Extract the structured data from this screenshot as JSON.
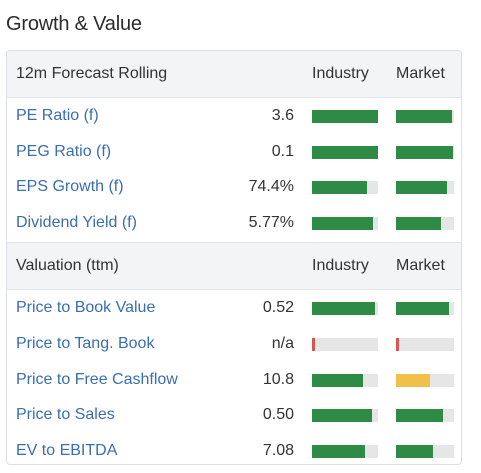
{
  "widget": {
    "title": "Growth & Value"
  },
  "colors": {
    "good": "#2e8b45",
    "neutral": "#f0c04a",
    "bad": "#d9534f",
    "track": "#e6e6e6"
  },
  "sections": [
    {
      "header": "12m Forecast Rolling",
      "industry_label": "Industry",
      "market_label": "Market",
      "rows": [
        {
          "label": "PE Ratio (f)",
          "value": "3.6",
          "industry": 1.0,
          "industry_color": "good",
          "market": 0.97,
          "market_color": "good"
        },
        {
          "label": "PEG Ratio (f)",
          "value": "0.1",
          "industry": 1.0,
          "industry_color": "good",
          "market": 0.98,
          "market_color": "good"
        },
        {
          "label": "EPS Growth (f)",
          "value": "74.4%",
          "industry": 0.84,
          "industry_color": "good",
          "market": 0.88,
          "market_color": "good"
        },
        {
          "label": "Dividend Yield (f)",
          "value": "5.77%",
          "industry": 0.92,
          "industry_color": "good",
          "market": 0.78,
          "market_color": "good"
        }
      ]
    },
    {
      "header": "Valuation (ttm)",
      "industry_label": "Industry",
      "market_label": "Market",
      "rows": [
        {
          "label": "Price to Book Value",
          "value": "0.52",
          "industry": 0.96,
          "industry_color": "good",
          "market": 0.92,
          "market_color": "good"
        },
        {
          "label": "Price to Tang. Book",
          "value": "n/a",
          "industry": 0.05,
          "industry_color": "bad",
          "market": 0.05,
          "market_color": "bad"
        },
        {
          "label": "Price to Free Cashflow",
          "value": "10.8",
          "industry": 0.77,
          "industry_color": "good",
          "market": 0.59,
          "market_color": "neutral"
        },
        {
          "label": "Price to Sales",
          "value": "0.50",
          "industry": 0.91,
          "industry_color": "good",
          "market": 0.81,
          "market_color": "good"
        },
        {
          "label": "EV to EBITDA",
          "value": "7.08",
          "industry": 0.8,
          "industry_color": "good",
          "market": 0.64,
          "market_color": "good"
        }
      ]
    }
  ]
}
